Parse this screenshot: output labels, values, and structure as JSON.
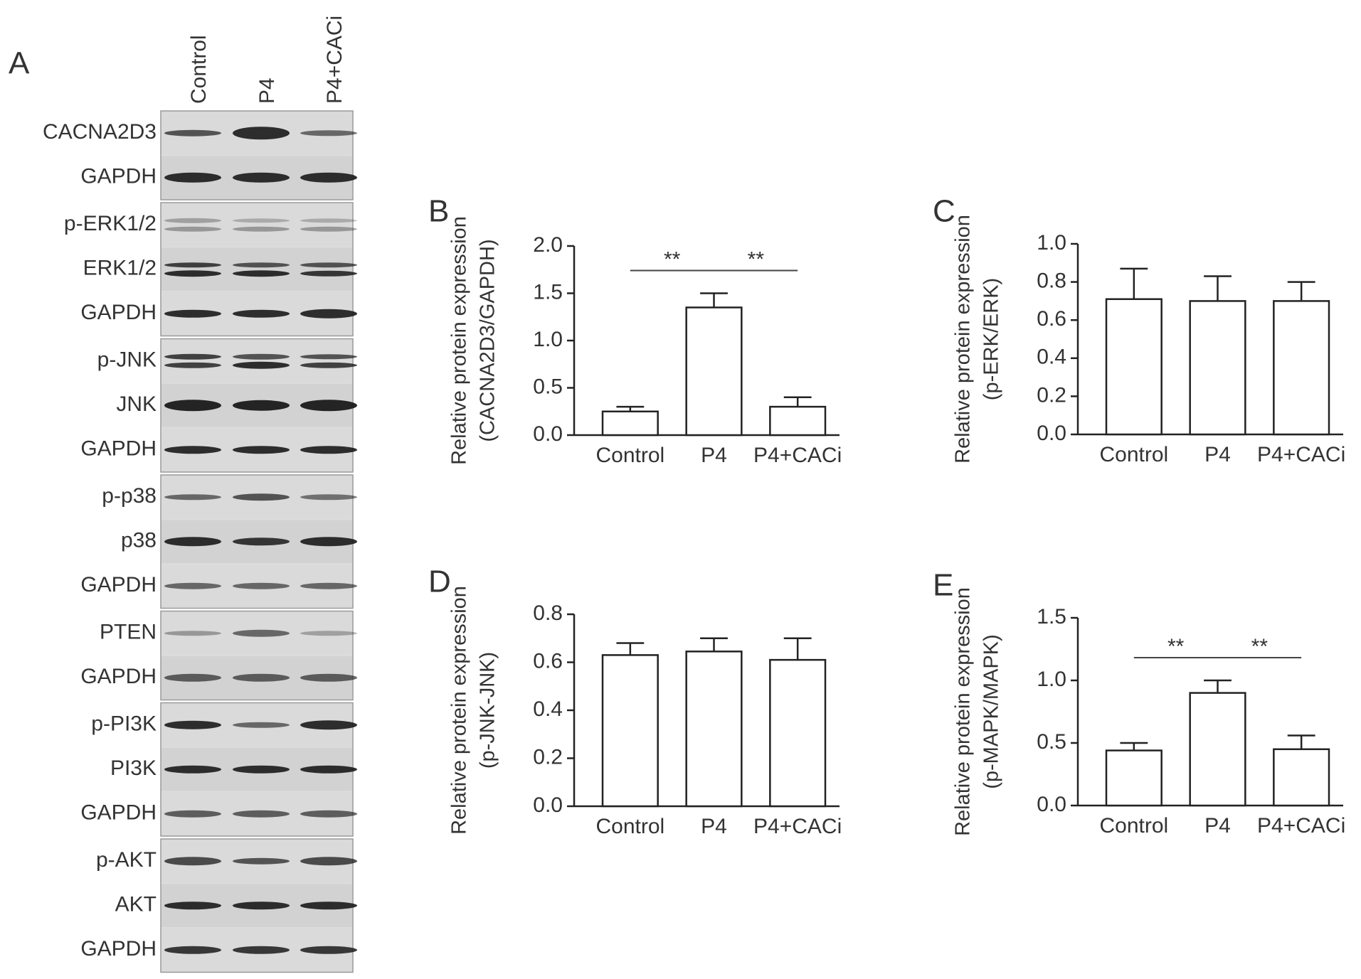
{
  "blot": {
    "panel": "A",
    "lanes": [
      "Control",
      "P4",
      "P4+CACi"
    ],
    "groups": [
      [
        "CACNA2D3",
        "GAPDH"
      ],
      [
        "p-ERK1/2",
        "ERK1/2",
        "GAPDH"
      ],
      [
        "p-JNK",
        "JNK",
        "GAPDH"
      ],
      [
        "p-p38",
        "p38",
        "GAPDH"
      ],
      [
        "PTEN",
        "GAPDH"
      ],
      [
        "p-PI3K",
        "PI3K",
        "GAPDH"
      ],
      [
        "p-AKT",
        "AKT",
        "GAPDH"
      ]
    ]
  },
  "chart_data": [
    {
      "type": "bar",
      "panel": "B",
      "ylabel": [
        "Relative protein expression",
        "(CACNA2D3/GAPDH)"
      ],
      "categories": [
        "Control",
        "P4",
        "P4+CACi"
      ],
      "values": [
        0.25,
        1.35,
        0.3
      ],
      "errors": [
        0.05,
        0.15,
        0.1
      ],
      "color": "#ffffff",
      "ylim": [
        0,
        2
      ],
      "yticks": [
        {
          "value": 0,
          "label": "0.0"
        },
        0.5,
        {
          "value": 1,
          "label": "1.0"
        },
        1.5,
        {
          "value": 2,
          "label": "2.0"
        }
      ],
      "annotations": [
        {
          "label": "**",
          "between": [
            "Control",
            "P4"
          ]
        },
        {
          "label": "**",
          "between": [
            "P4",
            "P4+CACi"
          ]
        }
      ]
    },
    {
      "type": "bar",
      "panel": "C",
      "ylabel": [
        "Relative protein expression",
        "(p-ERK/ERK)"
      ],
      "categories": [
        "Control",
        "P4",
        "P4+CACi"
      ],
      "values": [
        0.71,
        0.7,
        0.7
      ],
      "errors": [
        0.16,
        0.13,
        0.1
      ],
      "color": "#ffffff",
      "ylim": [
        0,
        1
      ],
      "yticks": [
        {
          "value": 0,
          "label": "0.0"
        },
        0.2,
        0.4,
        0.6,
        0.8,
        {
          "value": 1,
          "label": "1.0"
        }
      ]
    },
    {
      "type": "bar",
      "panel": "D",
      "ylabel": [
        "Relative protein expression",
        "(p-JNK-JNK)"
      ],
      "categories": [
        "Control",
        "P4",
        "P4+CACi"
      ],
      "values": [
        0.63,
        0.645,
        0.61
      ],
      "errors": [
        0.05,
        0.055,
        0.09
      ],
      "color": "#ffffff",
      "ylim": [
        0,
        0.8
      ],
      "yticks": [
        {
          "value": 0,
          "label": "0.0"
        },
        0.2,
        0.4,
        0.6,
        0.8
      ]
    },
    {
      "type": "bar",
      "panel": "E",
      "ylabel": [
        "Relative protein expression",
        "(p-MAPK/MAPK)"
      ],
      "categories": [
        "Control",
        "P4",
        "P4+CACi"
      ],
      "values": [
        0.44,
        0.9,
        0.45
      ],
      "errors": [
        0.06,
        0.1,
        0.11
      ],
      "color": "#ffffff",
      "ylim": [
        0,
        1.5
      ],
      "yticks": [
        {
          "value": 0,
          "label": "0.0"
        },
        0.5,
        {
          "value": 1,
          "label": "1.0"
        },
        1.5
      ],
      "annotations": [
        {
          "label": "**",
          "between": [
            "Control",
            "P4"
          ]
        },
        {
          "label": "**",
          "between": [
            "P4",
            "P4+CACi"
          ]
        }
      ]
    }
  ]
}
